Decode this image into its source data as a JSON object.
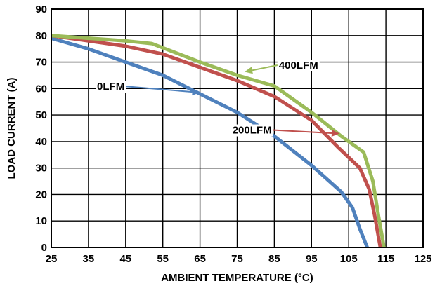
{
  "chart_data": {
    "type": "line",
    "xlabel": "AMBIENT TEMPERATURE (°C)",
    "ylabel": "LOAD CURRENT (A)",
    "xlim": [
      25,
      125
    ],
    "ylim": [
      0,
      90
    ],
    "x_ticks": [
      "25",
      "35",
      "45",
      "55",
      "65",
      "75",
      "85",
      "95",
      "105",
      "115",
      "125"
    ],
    "y_ticks": [
      "0",
      "10",
      "20",
      "30",
      "40",
      "50",
      "60",
      "70",
      "80",
      "90"
    ],
    "grid": true,
    "series": [
      {
        "name": "0LFM",
        "color": "#4F81BD",
        "points": [
          [
            25,
            79
          ],
          [
            35,
            75
          ],
          [
            45,
            70
          ],
          [
            55,
            65
          ],
          [
            65,
            58
          ],
          [
            75,
            51
          ],
          [
            85,
            42
          ],
          [
            95,
            31
          ],
          [
            103,
            21
          ],
          [
            106,
            15
          ],
          [
            108,
            7
          ],
          [
            110,
            0
          ]
        ]
      },
      {
        "name": "200LFM",
        "color": "#C0504D",
        "points": [
          [
            25,
            80
          ],
          [
            35,
            78
          ],
          [
            45,
            76
          ],
          [
            55,
            73
          ],
          [
            65,
            68
          ],
          [
            75,
            63
          ],
          [
            85,
            57
          ],
          [
            95,
            48
          ],
          [
            102,
            38
          ],
          [
            108,
            30
          ],
          [
            110.5,
            22
          ],
          [
            112,
            12
          ],
          [
            113.5,
            0
          ]
        ]
      },
      {
        "name": "400LFM",
        "color": "#9BBB59",
        "points": [
          [
            25,
            80
          ],
          [
            35,
            79
          ],
          [
            45,
            78
          ],
          [
            52,
            77
          ],
          [
            65,
            70
          ],
          [
            75,
            65
          ],
          [
            85,
            61
          ],
          [
            95,
            51
          ],
          [
            103,
            42
          ],
          [
            109,
            36
          ],
          [
            111.5,
            25
          ],
          [
            113,
            12
          ],
          [
            114.5,
            0
          ]
        ]
      }
    ],
    "annotations": [
      {
        "text": "400LFM",
        "series": "400LFM",
        "text_x": 91.5,
        "text_y": 67.5,
        "arrow_to": [
          77,
          66.3
        ]
      },
      {
        "text": "0LFM",
        "series": "0LFM",
        "text_x": 41,
        "text_y": 59.5,
        "arrow_to": [
          65,
          58.5
        ]
      },
      {
        "text": "200LFM",
        "series": "200LFM",
        "text_x": 79,
        "text_y": 43,
        "arrow_to": [
          102.5,
          43
        ]
      }
    ]
  }
}
